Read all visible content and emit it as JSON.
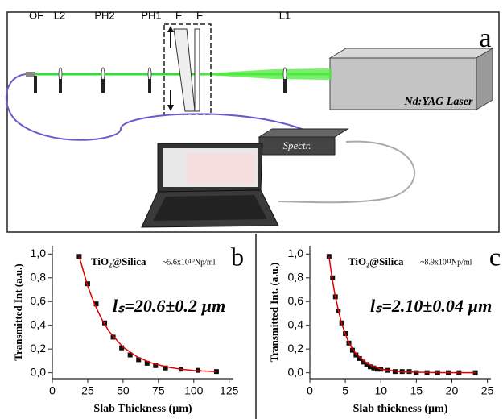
{
  "diagram": {
    "labels": [
      "OF",
      "L2",
      "PH2",
      "PH1",
      "F",
      "F",
      "L1"
    ],
    "panel": "a",
    "laser": "Nd:YAG Laser",
    "spectrometer": "Spectr."
  },
  "chart_data": [
    {
      "type": "scatter",
      "panel": "b",
      "compound": "TiO₂@Silica",
      "concentration": "~5.6x10¹⁰Np/ml",
      "result": "lₛ=20.6±0.2 µm",
      "x_label": "Slab Thickness (µm)",
      "y_label": "Transmitted Int (a.u.)",
      "xlim": [
        0,
        128
      ],
      "ylim": [
        -0.05,
        1.07
      ],
      "xticks": [
        0,
        25,
        50,
        75,
        100,
        125
      ],
      "yticks": [
        {
          "value": 0,
          "label": "0,0"
        },
        {
          "value": 0.2,
          "label": "0,2"
        },
        {
          "value": 0.4,
          "label": "0,4"
        },
        {
          "value": 0.6,
          "label": "0,6"
        },
        {
          "value": 0.8,
          "label": "0,8"
        },
        {
          "value": 1,
          "label": "1,0"
        }
      ],
      "series": [
        {
          "kind": "markers",
          "color": "#111111",
          "x": [
            19,
            25,
            31,
            37,
            43,
            49,
            55,
            61,
            67,
            73,
            80,
            91,
            103,
            116
          ],
          "values": [
            0.98,
            0.75,
            0.58,
            0.42,
            0.3,
            0.21,
            0.15,
            0.11,
            0.08,
            0.06,
            0.04,
            0.03,
            0.02,
            0.01
          ]
        },
        {
          "kind": "line",
          "color": "#e00000",
          "x": [
            19,
            25,
            30,
            35,
            40,
            50,
            60,
            70,
            80,
            90,
            100,
            116
          ],
          "values": [
            0.98,
            0.73,
            0.575,
            0.45,
            0.35,
            0.216,
            0.134,
            0.083,
            0.051,
            0.031,
            0.019,
            0.009
          ]
        }
      ]
    },
    {
      "type": "scatter",
      "panel": "c",
      "compound": "TiO₂@Silica",
      "concentration": "~8.9x10¹¹Np/ml",
      "result": "lₛ=2.10±0.04 µm",
      "x_label": "Slab thickness (µm)",
      "y_label": "Transmitted Int. (a.u.)",
      "xlim": [
        0,
        25.5
      ],
      "ylim": [
        -0.05,
        1.07
      ],
      "xticks": [
        0,
        5,
        10,
        15,
        20,
        25
      ],
      "yticks": [
        {
          "value": 0,
          "label": "0,0"
        },
        {
          "value": 0.2,
          "label": "0,2"
        },
        {
          "value": 0.4,
          "label": "0,4"
        },
        {
          "value": 0.6,
          "label": "0,6"
        },
        {
          "value": 0.8,
          "label": "0,8"
        },
        {
          "value": 1,
          "label": "1,0"
        }
      ],
      "series": [
        {
          "kind": "markers",
          "color": "#111111",
          "x": [
            2.7,
            3.2,
            3.6,
            4.0,
            4.5,
            5.0,
            5.5,
            6.0,
            6.5,
            7.0,
            7.5,
            8.0,
            8.5,
            9.0,
            9.5,
            10,
            11,
            12,
            13,
            14,
            15,
            16.5,
            18,
            19.5,
            21,
            23.3
          ],
          "values": [
            0.98,
            0.8,
            0.64,
            0.52,
            0.42,
            0.33,
            0.25,
            0.19,
            0.15,
            0.12,
            0.09,
            0.07,
            0.05,
            0.04,
            0.03,
            0.03,
            0.02,
            0.01,
            0.01,
            0.01,
            0,
            0,
            0,
            0,
            0,
            0
          ]
        },
        {
          "kind": "line",
          "color": "#e00000",
          "x": [
            2.7,
            3.1,
            3.5,
            4.0,
            4.5,
            5.5,
            6.5,
            8,
            10,
            13,
            18,
            23.3
          ],
          "values": [
            0.98,
            0.81,
            0.67,
            0.53,
            0.41,
            0.25,
            0.16,
            0.08,
            0.03,
            0.007,
            0.001,
            0
          ]
        }
      ]
    }
  ]
}
